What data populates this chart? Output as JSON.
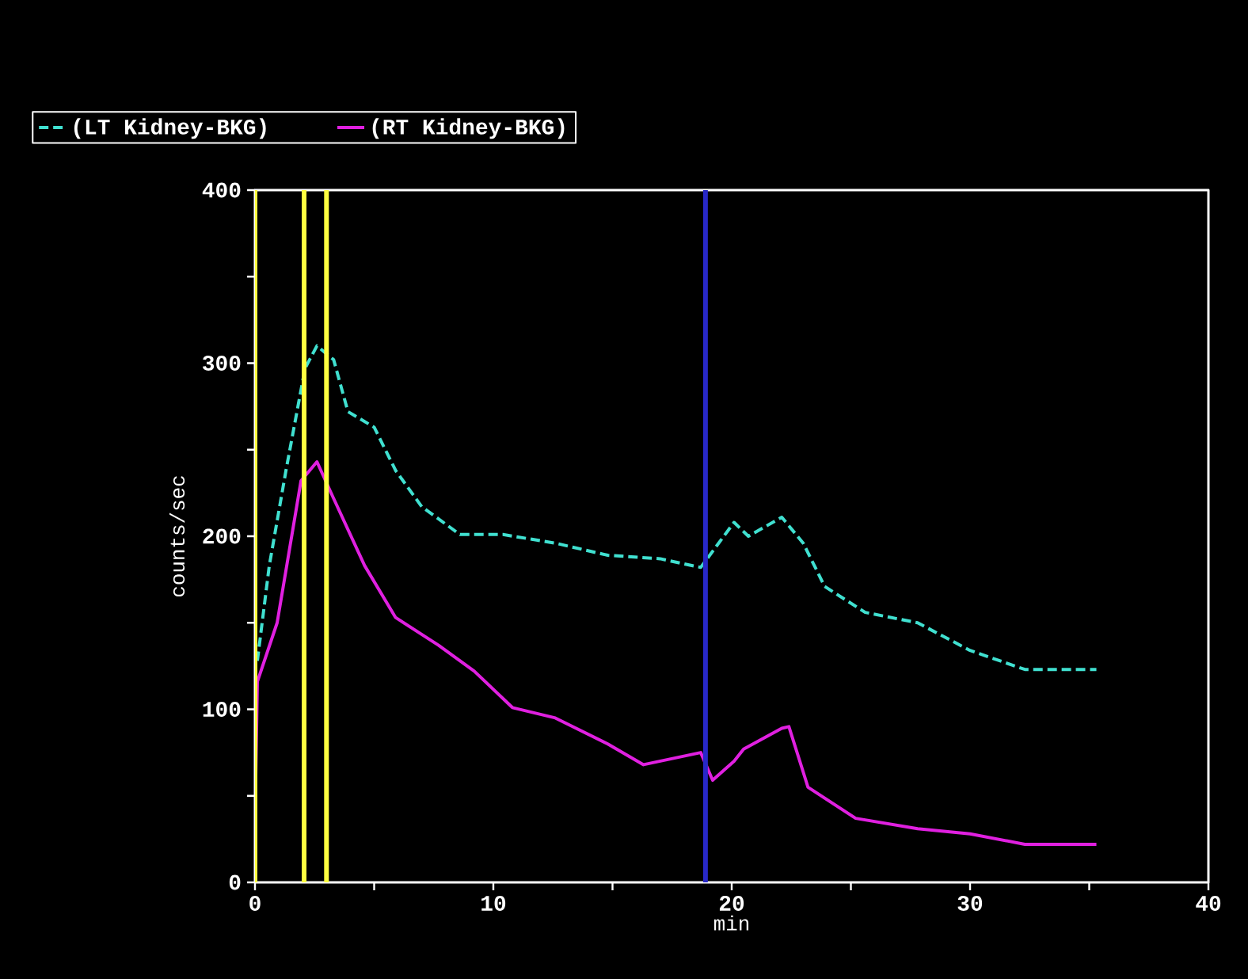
{
  "chart_data": {
    "type": "line",
    "xlabel": "min",
    "ylabel": "counts/sec",
    "xlim": [
      0,
      40
    ],
    "ylim": [
      0,
      400
    ],
    "xticks": [
      0,
      {
        "value": 5,
        "label": null
      },
      10,
      {
        "value": 15,
        "label": null
      },
      20,
      {
        "value": 25,
        "label": null
      },
      30,
      {
        "value": 35,
        "label": null
      },
      40
    ],
    "yticks": [
      0,
      {
        "value": 50,
        "label": null
      },
      100,
      {
        "value": 150,
        "label": null
      },
      200,
      {
        "value": 250,
        "label": null
      },
      300,
      {
        "value": 350,
        "label": null
      },
      400
    ],
    "legend": "top left",
    "marker": "none",
    "grid": false,
    "ref_lines": [
      {
        "axis": "x",
        "value": 0,
        "color": "#ffff40"
      },
      {
        "axis": "x",
        "value": 2.06,
        "color": "#ffff40"
      },
      {
        "axis": "x",
        "value": 3,
        "color": "#ffff40"
      },
      {
        "axis": "x",
        "value": 18.9,
        "color": "#2828c8"
      }
    ],
    "series": [
      {
        "name": "(LT Kidney-BKG)",
        "color": "#40e0d0",
        "line_style": "dashed",
        "x": [
          0.1,
          0.6,
          1.3,
          2.1,
          2.6,
          3.3,
          3.9,
          5,
          5.9,
          7,
          8.6,
          10.4,
          12.6,
          14.8,
          17,
          18.7,
          20.1,
          20.7,
          22.1,
          23,
          23.9,
          25.6,
          27.8,
          30,
          32.3,
          35.3
        ],
        "values": [
          128,
          183,
          238,
          297,
          310,
          302,
          272,
          263,
          238,
          217,
          201,
          201,
          196,
          189,
          187,
          182,
          208,
          200,
          211,
          196,
          171,
          156,
          150,
          134,
          123,
          123
        ]
      },
      {
        "name": "(RT Kidney-BKG)",
        "color": "#e020e0",
        "line_style": "solid",
        "x": [
          0,
          0.1,
          0.93,
          1.93,
          2.6,
          3.26,
          4.6,
          5.9,
          7.7,
          9.2,
          10.8,
          12.6,
          14.8,
          16.3,
          18.7,
          19.2,
          20.1,
          20.5,
          22.1,
          22.4,
          23.2,
          25.2,
          27.8,
          30,
          32.3,
          35.3
        ],
        "values": [
          34,
          116,
          150,
          232,
          243,
          223,
          183,
          153,
          137,
          122,
          101,
          95,
          80,
          68,
          75,
          59,
          70,
          77,
          89,
          90,
          55,
          37,
          31,
          28,
          22,
          22
        ]
      }
    ]
  }
}
